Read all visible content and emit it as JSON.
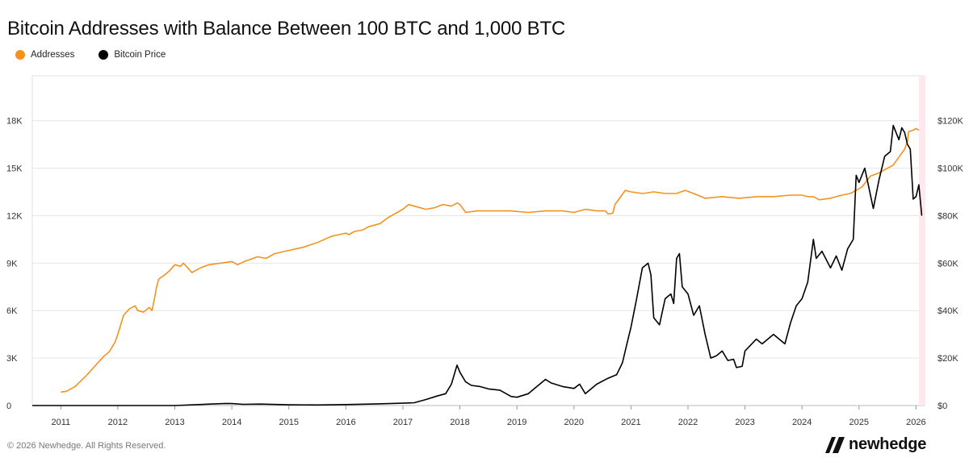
{
  "title": "Bitcoin Addresses with Balance Between 100 BTC and 1,000 BTC",
  "footer": "© 2026 Newhedge. All Rights Reserved.",
  "brand": {
    "name": "newhedge"
  },
  "legend": [
    {
      "label": "Addresses",
      "color": "#f5921e"
    },
    {
      "label": "Bitcoin Price",
      "color": "#000000"
    }
  ],
  "chart_data": {
    "type": "line",
    "title": "Bitcoin Addresses with Balance Between 100 BTC and 1,000 BTC",
    "xlabel": "",
    "ylabel": "",
    "x_range": [
      2010.5,
      2026.15
    ],
    "x_ticks": [
      "2011",
      "2012",
      "2013",
      "2014",
      "2015",
      "2016",
      "2017",
      "2018",
      "2019",
      "2020",
      "2021",
      "2022",
      "2023",
      "2024",
      "2025",
      "2026"
    ],
    "y_left": {
      "range": [
        0,
        20838
      ],
      "ticks": [
        0,
        3000,
        6000,
        9000,
        12000,
        15000,
        18000
      ],
      "tick_labels": [
        "0",
        "3K",
        "6K",
        "9K",
        "12K",
        "15K",
        "18K"
      ]
    },
    "y_right": {
      "range": [
        0,
        138920
      ],
      "ticks": [
        0,
        20000,
        40000,
        60000,
        80000,
        100000,
        120000
      ],
      "tick_labels": [
        "$0",
        "$20K",
        "$40K",
        "$60K",
        "$80K",
        "$100K",
        "$120K"
      ]
    },
    "grid": true,
    "series": [
      {
        "name": "Addresses",
        "axis": "left",
        "color": "#f5921e",
        "x": [
          2011.0,
          2011.1,
          2011.25,
          2011.45,
          2011.6,
          2011.75,
          2011.85,
          2011.95,
          2012.0,
          2012.1,
          2012.2,
          2012.3,
          2012.35,
          2012.45,
          2012.55,
          2012.6,
          2012.65,
          2012.68,
          2012.72,
          2012.8,
          2012.9,
          2013.0,
          2013.1,
          2013.15,
          2013.25,
          2013.3,
          2013.45,
          2013.6,
          2013.8,
          2014.0,
          2014.1,
          2014.25,
          2014.3,
          2014.45,
          2014.6,
          2014.75,
          2015.0,
          2015.25,
          2015.5,
          2015.75,
          2016.0,
          2016.05,
          2016.15,
          2016.3,
          2016.4,
          2016.6,
          2016.75,
          2016.9,
          2017.0,
          2017.1,
          2017.2,
          2017.4,
          2017.55,
          2017.7,
          2017.85,
          2017.95,
          2018.0,
          2018.1,
          2018.3,
          2018.6,
          2018.9,
          2019.2,
          2019.5,
          2019.8,
          2020.0,
          2020.2,
          2020.4,
          2020.55,
          2020.6,
          2020.68,
          2020.72,
          2020.8,
          2020.9,
          2021.0,
          2021.2,
          2021.4,
          2021.6,
          2021.8,
          2021.95,
          2022.1,
          2022.3,
          2022.6,
          2022.9,
          2023.2,
          2023.5,
          2023.8,
          2024.0,
          2024.1,
          2024.2,
          2024.3,
          2024.5,
          2024.7,
          2024.85,
          2024.95,
          2025.05,
          2025.2,
          2025.35,
          2025.5,
          2025.6,
          2025.7,
          2025.8,
          2025.85,
          2025.87,
          2025.95,
          2026.0,
          2026.05
        ],
        "values": [
          850,
          900,
          1200,
          1900,
          2500,
          3100,
          3400,
          4000,
          4500,
          5700,
          6100,
          6300,
          6000,
          5900,
          6200,
          6000,
          6900,
          7500,
          8000,
          8200,
          8500,
          8900,
          8800,
          9000,
          8600,
          8400,
          8700,
          8900,
          9000,
          9100,
          8900,
          9150,
          9200,
          9400,
          9300,
          9600,
          9800,
          10000,
          10300,
          10700,
          10900,
          10800,
          11000,
          11100,
          11300,
          11500,
          11900,
          12200,
          12400,
          12700,
          12600,
          12400,
          12500,
          12700,
          12600,
          12800,
          12700,
          12200,
          12300,
          12300,
          12300,
          12200,
          12300,
          12300,
          12200,
          12400,
          12300,
          12300,
          12100,
          12150,
          12700,
          13100,
          13600,
          13500,
          13400,
          13500,
          13400,
          13400,
          13600,
          13400,
          13100,
          13200,
          13100,
          13200,
          13200,
          13300,
          13300,
          13200,
          13200,
          13000,
          13100,
          13300,
          13400,
          13600,
          13800,
          14500,
          14700,
          15000,
          15200,
          15700,
          16200,
          16700,
          17300,
          17400,
          17500,
          17400
        ]
      },
      {
        "name": "Bitcoin Price",
        "axis": "right",
        "color": "#000000",
        "x": [
          2010.5,
          2011.45,
          2011.7,
          2012.5,
          2013.0,
          2013.9,
          2014.0,
          2014.2,
          2014.5,
          2015.0,
          2015.5,
          2016.0,
          2016.5,
          2017.0,
          2017.2,
          2017.4,
          2017.6,
          2017.75,
          2017.85,
          2017.95,
          2018.0,
          2018.1,
          2018.2,
          2018.35,
          2018.5,
          2018.7,
          2018.9,
          2019.0,
          2019.2,
          2019.35,
          2019.5,
          2019.6,
          2019.8,
          2020.0,
          2020.1,
          2020.2,
          2020.4,
          2020.6,
          2020.75,
          2020.85,
          2020.95,
          2021.0,
          2021.1,
          2021.2,
          2021.3,
          2021.35,
          2021.4,
          2021.5,
          2021.6,
          2021.7,
          2021.75,
          2021.8,
          2021.85,
          2021.9,
          2022.0,
          2022.1,
          2022.2,
          2022.3,
          2022.4,
          2022.5,
          2022.6,
          2022.7,
          2022.8,
          2022.85,
          2022.95,
          2023.0,
          2023.2,
          2023.3,
          2023.5,
          2023.7,
          2023.8,
          2023.9,
          2024.0,
          2024.1,
          2024.2,
          2024.25,
          2024.35,
          2024.5,
          2024.6,
          2024.7,
          2024.8,
          2024.9,
          2024.95,
          2025.0,
          2025.1,
          2025.25,
          2025.35,
          2025.45,
          2025.55,
          2025.6,
          2025.7,
          2025.75,
          2025.8,
          2025.85,
          2025.9,
          2025.95,
          2026.0,
          2026.05,
          2026.1
        ],
        "values": [
          0,
          5,
          5,
          10,
          15,
          900,
          800,
          500,
          600,
          300,
          250,
          400,
          650,
          1000,
          1200,
          2500,
          4000,
          5000,
          9000,
          17000,
          14000,
          10000,
          8500,
          8000,
          7000,
          6500,
          3800,
          3500,
          5000,
          8000,
          11000,
          9500,
          8000,
          7200,
          9000,
          5000,
          9000,
          11500,
          13000,
          18000,
          28000,
          33000,
          45000,
          58000,
          60000,
          55000,
          37000,
          34000,
          45000,
          47000,
          43000,
          62000,
          64000,
          50000,
          47000,
          38000,
          42000,
          30000,
          20000,
          21000,
          23000,
          19000,
          19500,
          16000,
          16500,
          23000,
          28000,
          26000,
          30000,
          26000,
          35000,
          42000,
          45000,
          52000,
          70000,
          62000,
          65000,
          58000,
          63000,
          57000,
          66000,
          70000,
          97000,
          94000,
          100000,
          83000,
          95000,
          105000,
          107000,
          118000,
          112000,
          117000,
          115000,
          110000,
          108000,
          87000,
          88000,
          93000,
          80000
        ]
      }
    ]
  }
}
